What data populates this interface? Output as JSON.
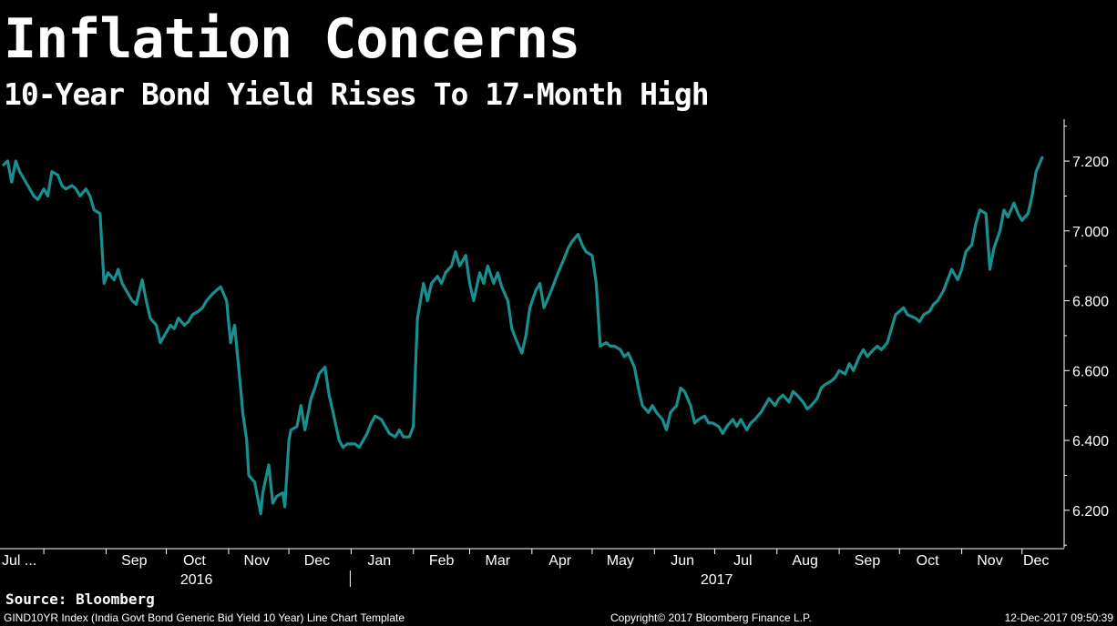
{
  "header": {
    "title": "Inflation Concerns",
    "subtitle": "10-Year Bond Yield Rises To 17-Month High"
  },
  "source": "Source: Bloomberg",
  "footer": {
    "left": "GIND10YR Index (India Govt Bond Generic Bid Yield 10 Year) Line Chart Template",
    "center": "Copyright© 2017 Bloomberg Finance L.P.",
    "right": "12-Dec-2017 09:50:39"
  },
  "colors": {
    "background": "#000000",
    "line": "#1a8f8f",
    "text": "#ffffff"
  },
  "chart_data": {
    "type": "line",
    "title": "Inflation Concerns",
    "subtitle": "10-Year Bond Yield Rises To 17-Month High",
    "xlabel": "",
    "ylabel": "",
    "ylim": [
      6.09,
      7.32
    ],
    "yticks": [
      6.2,
      6.4,
      6.6,
      6.8,
      7.0,
      7.2
    ],
    "ytick_labels": [
      "6.200",
      "6.400",
      "6.600",
      "6.800",
      "7.000",
      "7.200"
    ],
    "xlim": [
      "2016-07-12",
      "2017-12-12"
    ],
    "xticks": [
      {
        "label": "Jul ...",
        "date": "2016-07-15"
      },
      {
        "label": "Sep",
        "date": "2016-09-15"
      },
      {
        "label": "Oct",
        "date": "2016-10-15"
      },
      {
        "label": "Nov",
        "date": "2016-11-15"
      },
      {
        "label": "Dec",
        "date": "2016-12-15"
      },
      {
        "label": "Jan",
        "date": "2017-01-15"
      },
      {
        "label": "Feb",
        "date": "2017-02-15"
      },
      {
        "label": "Mar",
        "date": "2017-03-15"
      },
      {
        "label": "Apr",
        "date": "2017-04-15"
      },
      {
        "label": "May",
        "date": "2017-05-15"
      },
      {
        "label": "Jun",
        "date": "2017-06-15"
      },
      {
        "label": "Jul",
        "date": "2017-07-15"
      },
      {
        "label": "Aug",
        "date": "2017-08-15"
      },
      {
        "label": "Sep",
        "date": "2017-09-15"
      },
      {
        "label": "Oct",
        "date": "2017-10-15"
      },
      {
        "label": "Nov",
        "date": "2017-11-15"
      },
      {
        "label": "Dec",
        "date": "2017-12-08"
      }
    ],
    "year_labels": [
      {
        "label": "2016",
        "date": "2016-10-16"
      },
      {
        "label": "2017",
        "date": "2017-07-02"
      }
    ],
    "year_separator": "2017-01-01",
    "grid": false,
    "legend": "none",
    "series": [
      {
        "name": "",
        "points": [
          [
            "2016-07-12",
            7.19
          ],
          [
            "2016-07-14",
            7.2
          ],
          [
            "2016-07-16",
            7.14
          ],
          [
            "2016-07-18",
            7.2
          ],
          [
            "2016-07-20",
            7.17
          ],
          [
            "2016-07-22",
            7.15
          ],
          [
            "2016-07-25",
            7.12
          ],
          [
            "2016-07-27",
            7.1
          ],
          [
            "2016-07-29",
            7.09
          ],
          [
            "2016-08-01",
            7.12
          ],
          [
            "2016-08-03",
            7.1
          ],
          [
            "2016-08-05",
            7.17
          ],
          [
            "2016-08-08",
            7.16
          ],
          [
            "2016-08-10",
            7.13
          ],
          [
            "2016-08-12",
            7.12
          ],
          [
            "2016-08-15",
            7.13
          ],
          [
            "2016-08-17",
            7.12
          ],
          [
            "2016-08-19",
            7.1
          ],
          [
            "2016-08-22",
            7.12
          ],
          [
            "2016-08-24",
            7.1
          ],
          [
            "2016-08-26",
            7.06
          ],
          [
            "2016-08-29",
            7.05
          ],
          [
            "2016-08-31",
            6.85
          ],
          [
            "2016-09-02",
            6.88
          ],
          [
            "2016-09-05",
            6.86
          ],
          [
            "2016-09-07",
            6.89
          ],
          [
            "2016-09-09",
            6.85
          ],
          [
            "2016-09-12",
            6.82
          ],
          [
            "2016-09-14",
            6.8
          ],
          [
            "2016-09-16",
            6.79
          ],
          [
            "2016-09-19",
            6.86
          ],
          [
            "2016-09-21",
            6.8
          ],
          [
            "2016-09-23",
            6.75
          ],
          [
            "2016-09-26",
            6.73
          ],
          [
            "2016-09-28",
            6.68
          ],
          [
            "2016-09-30",
            6.7
          ],
          [
            "2016-10-03",
            6.73
          ],
          [
            "2016-10-05",
            6.72
          ],
          [
            "2016-10-07",
            6.75
          ],
          [
            "2016-10-10",
            6.73
          ],
          [
            "2016-10-12",
            6.74
          ],
          [
            "2016-10-14",
            6.76
          ],
          [
            "2016-10-17",
            6.77
          ],
          [
            "2016-10-19",
            6.78
          ],
          [
            "2016-10-21",
            6.8
          ],
          [
            "2016-10-24",
            6.82
          ],
          [
            "2016-10-26",
            6.83
          ],
          [
            "2016-10-28",
            6.84
          ],
          [
            "2016-10-31",
            6.8
          ],
          [
            "2016-11-02",
            6.68
          ],
          [
            "2016-11-04",
            6.73
          ],
          [
            "2016-11-07",
            6.55
          ],
          [
            "2016-11-08",
            6.48
          ],
          [
            "2016-11-10",
            6.4
          ],
          [
            "2016-11-11",
            6.3
          ],
          [
            "2016-11-14",
            6.28
          ],
          [
            "2016-11-16",
            6.22
          ],
          [
            "2016-11-17",
            6.19
          ],
          [
            "2016-11-18",
            6.25
          ],
          [
            "2016-11-21",
            6.33
          ],
          [
            "2016-11-23",
            6.22
          ],
          [
            "2016-11-25",
            6.24
          ],
          [
            "2016-11-28",
            6.25
          ],
          [
            "2016-11-29",
            6.21
          ],
          [
            "2016-12-01",
            6.4
          ],
          [
            "2016-12-02",
            6.43
          ],
          [
            "2016-12-05",
            6.44
          ],
          [
            "2016-12-07",
            6.5
          ],
          [
            "2016-12-09",
            6.43
          ],
          [
            "2016-12-12",
            6.52
          ],
          [
            "2016-12-14",
            6.55
          ],
          [
            "2016-12-16",
            6.59
          ],
          [
            "2016-12-19",
            6.61
          ],
          [
            "2016-12-21",
            6.53
          ],
          [
            "2016-12-23",
            6.48
          ],
          [
            "2016-12-26",
            6.4
          ],
          [
            "2016-12-28",
            6.38
          ],
          [
            "2016-12-30",
            6.39
          ],
          [
            "2017-01-03",
            6.39
          ],
          [
            "2017-01-05",
            6.38
          ],
          [
            "2017-01-09",
            6.42
          ],
          [
            "2017-01-11",
            6.45
          ],
          [
            "2017-01-13",
            6.47
          ],
          [
            "2017-01-16",
            6.46
          ],
          [
            "2017-01-18",
            6.44
          ],
          [
            "2017-01-20",
            6.42
          ],
          [
            "2017-01-23",
            6.41
          ],
          [
            "2017-01-25",
            6.43
          ],
          [
            "2017-01-27",
            6.41
          ],
          [
            "2017-01-30",
            6.41
          ],
          [
            "2017-02-01",
            6.44
          ],
          [
            "2017-02-02",
            6.6
          ],
          [
            "2017-02-03",
            6.75
          ],
          [
            "2017-02-06",
            6.85
          ],
          [
            "2017-02-08",
            6.8
          ],
          [
            "2017-02-10",
            6.85
          ],
          [
            "2017-02-13",
            6.87
          ],
          [
            "2017-02-15",
            6.85
          ],
          [
            "2017-02-17",
            6.88
          ],
          [
            "2017-02-20",
            6.9
          ],
          [
            "2017-02-22",
            6.94
          ],
          [
            "2017-02-24",
            6.9
          ],
          [
            "2017-02-27",
            6.93
          ],
          [
            "2017-03-01",
            6.85
          ],
          [
            "2017-03-03",
            6.8
          ],
          [
            "2017-03-06",
            6.88
          ],
          [
            "2017-03-08",
            6.85
          ],
          [
            "2017-03-10",
            6.9
          ],
          [
            "2017-03-13",
            6.85
          ],
          [
            "2017-03-15",
            6.88
          ],
          [
            "2017-03-17",
            6.84
          ],
          [
            "2017-03-20",
            6.8
          ],
          [
            "2017-03-22",
            6.72
          ],
          [
            "2017-03-24",
            6.69
          ],
          [
            "2017-03-27",
            6.65
          ],
          [
            "2017-03-29",
            6.7
          ],
          [
            "2017-03-31",
            6.78
          ],
          [
            "2017-04-03",
            6.83
          ],
          [
            "2017-04-05",
            6.85
          ],
          [
            "2017-04-07",
            6.78
          ],
          [
            "2017-04-10",
            6.82
          ],
          [
            "2017-04-12",
            6.85
          ],
          [
            "2017-04-14",
            6.88
          ],
          [
            "2017-04-17",
            6.92
          ],
          [
            "2017-04-19",
            6.95
          ],
          [
            "2017-04-21",
            6.97
          ],
          [
            "2017-04-24",
            6.99
          ],
          [
            "2017-04-26",
            6.96
          ],
          [
            "2017-04-28",
            6.94
          ],
          [
            "2017-05-01",
            6.93
          ],
          [
            "2017-05-03",
            6.85
          ],
          [
            "2017-05-05",
            6.67
          ],
          [
            "2017-05-08",
            6.68
          ],
          [
            "2017-05-10",
            6.67
          ],
          [
            "2017-05-12",
            6.67
          ],
          [
            "2017-05-15",
            6.66
          ],
          [
            "2017-05-17",
            6.64
          ],
          [
            "2017-05-19",
            6.65
          ],
          [
            "2017-05-22",
            6.61
          ],
          [
            "2017-05-24",
            6.55
          ],
          [
            "2017-05-26",
            6.5
          ],
          [
            "2017-05-29",
            6.48
          ],
          [
            "2017-05-31",
            6.5
          ],
          [
            "2017-06-02",
            6.48
          ],
          [
            "2017-06-05",
            6.46
          ],
          [
            "2017-06-07",
            6.43
          ],
          [
            "2017-06-09",
            6.48
          ],
          [
            "2017-06-12",
            6.5
          ],
          [
            "2017-06-14",
            6.55
          ],
          [
            "2017-06-16",
            6.54
          ],
          [
            "2017-06-19",
            6.5
          ],
          [
            "2017-06-21",
            6.45
          ],
          [
            "2017-06-23",
            6.46
          ],
          [
            "2017-06-26",
            6.47
          ],
          [
            "2017-06-28",
            6.45
          ],
          [
            "2017-06-30",
            6.45
          ],
          [
            "2017-07-03",
            6.44
          ],
          [
            "2017-07-05",
            6.42
          ],
          [
            "2017-07-07",
            6.44
          ],
          [
            "2017-07-10",
            6.46
          ],
          [
            "2017-07-12",
            6.44
          ],
          [
            "2017-07-14",
            6.46
          ],
          [
            "2017-07-17",
            6.43
          ],
          [
            "2017-07-19",
            6.45
          ],
          [
            "2017-07-21",
            6.46
          ],
          [
            "2017-07-24",
            6.48
          ],
          [
            "2017-07-26",
            6.5
          ],
          [
            "2017-07-28",
            6.52
          ],
          [
            "2017-07-31",
            6.5
          ],
          [
            "2017-08-02",
            6.52
          ],
          [
            "2017-08-04",
            6.53
          ],
          [
            "2017-08-07",
            6.51
          ],
          [
            "2017-08-09",
            6.54
          ],
          [
            "2017-08-11",
            6.53
          ],
          [
            "2017-08-14",
            6.51
          ],
          [
            "2017-08-16",
            6.49
          ],
          [
            "2017-08-18",
            6.5
          ],
          [
            "2017-08-21",
            6.52
          ],
          [
            "2017-08-23",
            6.55
          ],
          [
            "2017-08-25",
            6.56
          ],
          [
            "2017-08-28",
            6.57
          ],
          [
            "2017-08-30",
            6.58
          ],
          [
            "2017-09-01",
            6.6
          ],
          [
            "2017-09-04",
            6.59
          ],
          [
            "2017-09-06",
            6.62
          ],
          [
            "2017-09-08",
            6.6
          ],
          [
            "2017-09-11",
            6.64
          ],
          [
            "2017-09-13",
            6.66
          ],
          [
            "2017-09-15",
            6.64
          ],
          [
            "2017-09-18",
            6.66
          ],
          [
            "2017-09-20",
            6.67
          ],
          [
            "2017-09-22",
            6.66
          ],
          [
            "2017-09-25",
            6.68
          ],
          [
            "2017-09-27",
            6.72
          ],
          [
            "2017-09-29",
            6.76
          ],
          [
            "2017-10-03",
            6.78
          ],
          [
            "2017-10-05",
            6.76
          ],
          [
            "2017-10-09",
            6.75
          ],
          [
            "2017-10-11",
            6.74
          ],
          [
            "2017-10-13",
            6.76
          ],
          [
            "2017-10-16",
            6.77
          ],
          [
            "2017-10-18",
            6.79
          ],
          [
            "2017-10-20",
            6.8
          ],
          [
            "2017-10-23",
            6.83
          ],
          [
            "2017-10-25",
            6.86
          ],
          [
            "2017-10-27",
            6.89
          ],
          [
            "2017-10-30",
            6.86
          ],
          [
            "2017-11-01",
            6.89
          ],
          [
            "2017-11-03",
            6.94
          ],
          [
            "2017-11-06",
            6.96
          ],
          [
            "2017-11-08",
            7.02
          ],
          [
            "2017-11-10",
            7.06
          ],
          [
            "2017-11-13",
            7.05
          ],
          [
            "2017-11-15",
            6.89
          ],
          [
            "2017-11-17",
            6.95
          ],
          [
            "2017-11-20",
            7.0
          ],
          [
            "2017-11-22",
            7.06
          ],
          [
            "2017-11-24",
            7.04
          ],
          [
            "2017-11-27",
            7.08
          ],
          [
            "2017-11-29",
            7.05
          ],
          [
            "2017-12-01",
            7.03
          ],
          [
            "2017-12-04",
            7.05
          ],
          [
            "2017-12-06",
            7.1
          ],
          [
            "2017-12-08",
            7.17
          ],
          [
            "2017-12-11",
            7.21
          ]
        ]
      }
    ]
  }
}
